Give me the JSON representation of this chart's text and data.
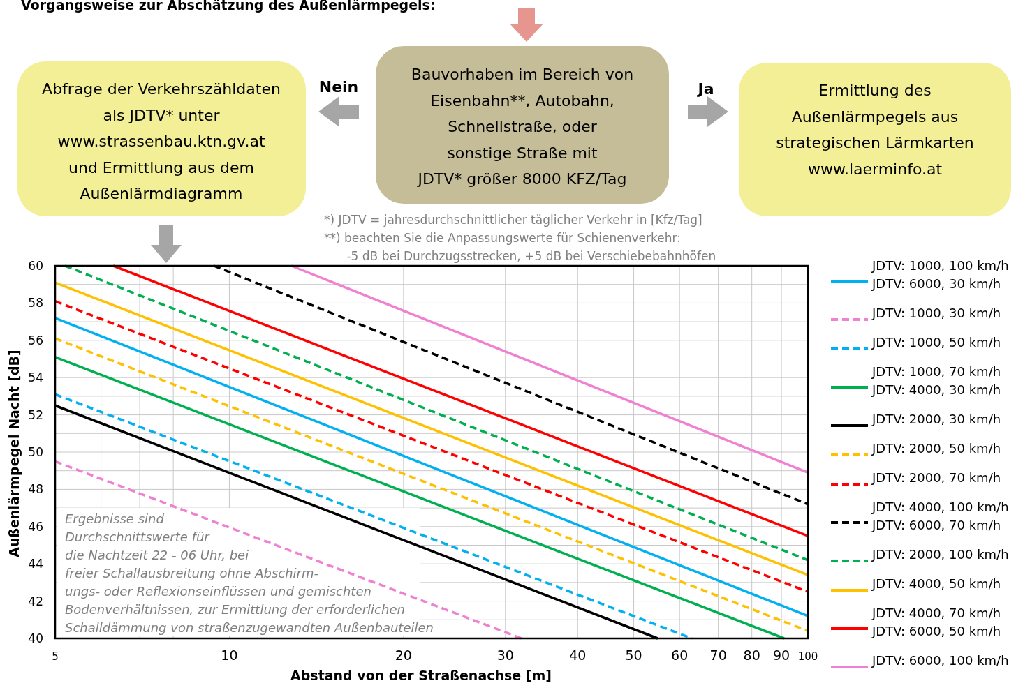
{
  "chart_data": {
    "type": "line",
    "title": "Vorgangsweise zur Abschätzung des Außenlärmpegels:",
    "xlabel": "Abstand von der Straßenachse [m]",
    "ylabel": "Außenlärmpegel Nacht [dB]",
    "log": "x",
    "xlim": [
      5,
      100
    ],
    "ylim": [
      40,
      60
    ],
    "xticks": [
      5,
      {
        "value": 6,
        "label": null
      },
      {
        "value": 7,
        "label": null
      },
      {
        "value": 8,
        "label": null
      },
      {
        "value": 9,
        "label": null
      },
      10,
      20,
      30,
      40,
      50,
      60,
      70,
      80,
      90,
      100
    ],
    "yticks": [
      40,
      {
        "value": 41,
        "label": null
      },
      42,
      {
        "value": 43,
        "label": null
      },
      44,
      {
        "value": 45,
        "label": null
      },
      46,
      {
        "value": 47,
        "label": null
      },
      48,
      {
        "value": 49,
        "label": null
      },
      50,
      {
        "value": 51,
        "label": null
      },
      52,
      {
        "value": 53,
        "label": null
      },
      54,
      {
        "value": 55,
        "label": null
      },
      56,
      {
        "value": 57,
        "label": null
      },
      58,
      {
        "value": 59,
        "label": null
      },
      60
    ],
    "grid": true,
    "legend": "right",
    "series": [
      {
        "name": "JDTV: 1000, 100 km/h\nJDTV: 6000, 30 km/h",
        "color": "#00b0f0",
        "line_style": "solid",
        "x": [
          5,
          100
        ],
        "values": [
          57.2,
          41.2
        ]
      },
      {
        "name": "JDTV: 1000, 30 km/h",
        "color": "#f080d0",
        "line_style": "dashed",
        "x": [
          5,
          32
        ],
        "values": [
          49.5,
          40
        ]
      },
      {
        "name": "JDTV: 1000, 50 km/h",
        "color": "#00b0f0",
        "line_style": "dashed",
        "x": [
          5,
          63
        ],
        "values": [
          53.1,
          40
        ]
      },
      {
        "name": "JDTV: 1000, 70 km/h\nJDTV: 4000, 30 km/h",
        "color": "#00b050",
        "line_style": "solid",
        "x": [
          5,
          91
        ],
        "values": [
          55.1,
          40
        ]
      },
      {
        "name": "JDTV: 2000, 30 km/h",
        "color": "#000000",
        "line_style": "solid",
        "x": [
          5,
          55
        ],
        "values": [
          52.5,
          40
        ]
      },
      {
        "name": "JDTV: 2000, 50 km/h",
        "color": "#ffc000",
        "line_style": "dashed",
        "x": [
          5,
          100
        ],
        "values": [
          56.1,
          40.4
        ]
      },
      {
        "name": "JDTV: 2000, 70 km/h",
        "color": "#ff0000",
        "line_style": "dashed",
        "x": [
          5,
          100
        ],
        "values": [
          58.1,
          42.5
        ]
      },
      {
        "name": "JDTV: 4000, 100 km/h\nJDTV: 6000, 70 km/h",
        "color": "#000000",
        "line_style": "dashed",
        "x": [
          9.4,
          100
        ],
        "values": [
          60,
          47.2
        ]
      },
      {
        "name": "JDTV: 2000, 100 km/h",
        "color": "#00b050",
        "line_style": "dashed",
        "x": [
          5.2,
          100
        ],
        "values": [
          60,
          44.2
        ]
      },
      {
        "name": "JDTV: 4000, 50 km/h",
        "color": "#ffc000",
        "line_style": "solid",
        "x": [
          5,
          100
        ],
        "values": [
          59.1,
          43.4
        ]
      },
      {
        "name": "JDTV: 4000, 70 km/h\nJDTV: 6000, 50 km/h",
        "color": "#ff0000",
        "line_style": "solid",
        "x": [
          6.3,
          100
        ],
        "values": [
          60,
          45.5
        ]
      },
      {
        "name": "JDTV: 6000, 100 km/h",
        "color": "#f080d0",
        "line_style": "solid",
        "x": [
          12.8,
          100
        ],
        "values": [
          60,
          48.9
        ]
      }
    ],
    "annotations": [
      "Bauvorhaben im Bereich von\nEisenbahn**, Autobahn,\nSchnellstraße, oder\nsonstige Straße mit\nJDTV* größer 8000 KFZ/Tag",
      "Abfrage der Verkehrszähldaten\nals JDTV* unter\nwww.strassenbau.ktn.gv.at\nund Ermittlung aus dem\nAußenlärmdiagramm",
      "Ermittlung des\nAußenlärmpegels aus\nstrategischen Lärmkarten\nwww.laerminfo.at",
      "Nein",
      "Ja",
      "*) JDTV = jahresdurchschnittlicher täglicher Verkehr in [Kfz/Tag]\n**) beachten Sie die Anpassungswerte für Schienenverkehr:\n      -5 dB bei Durchzugsstrecken, +5 dB bei Verschiebebahnhöfen",
      "Ergebnisse sind\nDurchschnittswerte für\ndie Nachtzeit 22 - 06 Uhr, bei\nfreier Schallausbreitung ohne Abschirm-\nungs- oder Reflexionseinflüssen und gemischten\nBodenverhältnissen, zur Ermittlung der erforderlichen\nSchalldämmung von straßenzugewandten Außenbauteilen"
    ]
  }
}
